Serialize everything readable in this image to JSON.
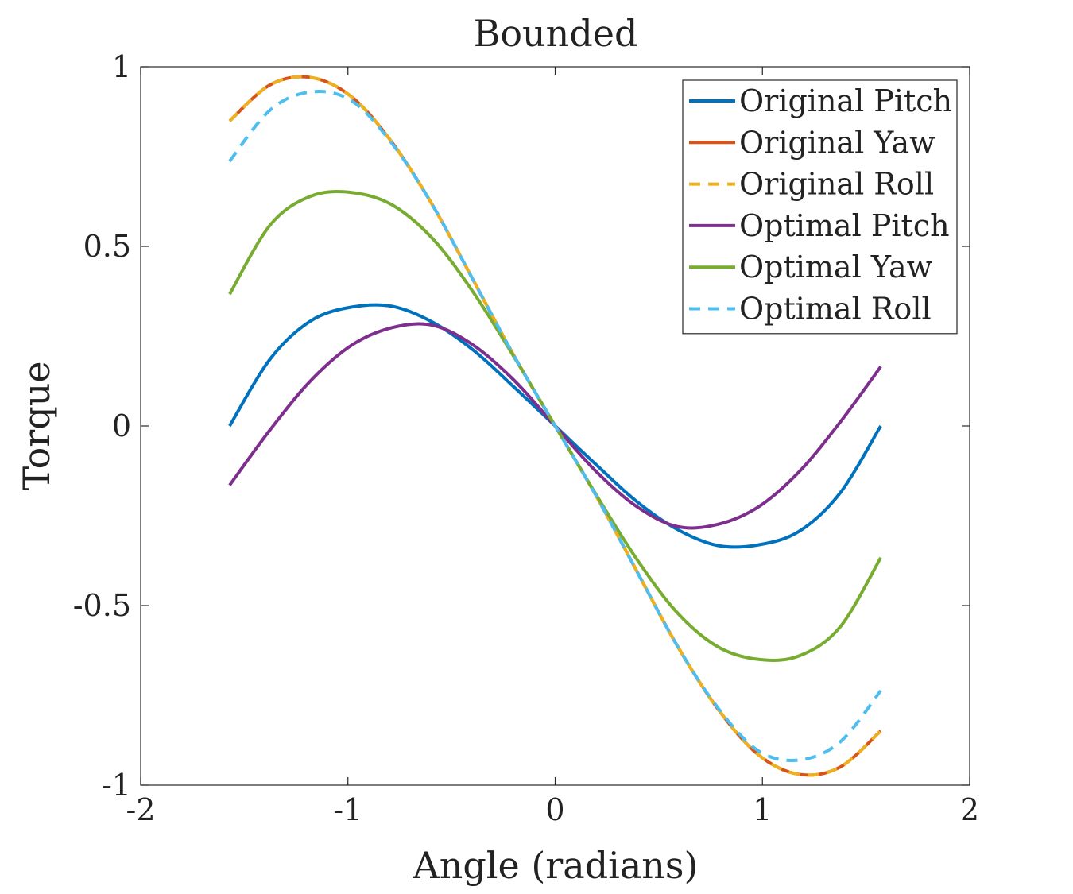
{
  "chart_data": {
    "type": "line",
    "title": "Bounded",
    "xlabel": "Angle (radians)",
    "ylabel": "Torque",
    "xlim": [
      -2,
      2
    ],
    "ylim": [
      -1,
      1
    ],
    "xticks": [
      -2,
      -1,
      0,
      1,
      2
    ],
    "xtick_labels": [
      "-2",
      "-1",
      "0",
      "1",
      "2"
    ],
    "yticks": [
      -1,
      -0.5,
      0,
      0.5,
      1
    ],
    "ytick_labels": [
      "-1",
      "-0.5",
      "0",
      "0.5",
      "1"
    ],
    "grid": false,
    "legend_position": "top-right",
    "x": [
      -1.5708,
      -1.3744,
      -1.1781,
      -0.9817,
      -0.7854,
      -0.589,
      -0.3927,
      -0.1963,
      0,
      0.1963,
      0.3927,
      0.589,
      0.7854,
      0.9817,
      1.1781,
      1.3744,
      1.5708
    ],
    "series": [
      {
        "name": "Original Pitch",
        "color": "#0072BD",
        "dash": "solid",
        "values": [
          0,
          0.187,
          0.293,
          0.331,
          0.333,
          0.288,
          0.21,
          0.107,
          0,
          -0.107,
          -0.21,
          -0.288,
          -0.333,
          -0.331,
          -0.293,
          -0.187,
          0
        ]
      },
      {
        "name": "Original Yaw",
        "color": "#D95319",
        "dash": "solid",
        "values": [
          0.849,
          0.95,
          0.97,
          0.916,
          0.788,
          0.612,
          0.403,
          0.193,
          0,
          -0.193,
          -0.403,
          -0.612,
          -0.788,
          -0.916,
          -0.97,
          -0.95,
          -0.849
        ]
      },
      {
        "name": "Original Roll",
        "color": "#EDB120",
        "dash": "dashed",
        "values": [
          0.849,
          0.95,
          0.97,
          0.916,
          0.788,
          0.612,
          0.403,
          0.193,
          0,
          -0.193,
          -0.403,
          -0.612,
          -0.788,
          -0.916,
          -0.97,
          -0.95,
          -0.849
        ]
      },
      {
        "name": "Optimal Pitch",
        "color": "#7E2F8E",
        "dash": "solid",
        "values": [
          -0.165,
          -0.01,
          0.127,
          0.225,
          0.274,
          0.28,
          0.224,
          0.126,
          0,
          -0.126,
          -0.224,
          -0.28,
          -0.274,
          -0.225,
          -0.127,
          0.01,
          0.165
        ]
      },
      {
        "name": "Optimal Yaw",
        "color": "#77AC30",
        "dash": "solid",
        "values": [
          0.367,
          0.56,
          0.64,
          0.65,
          0.615,
          0.52,
          0.37,
          0.19,
          0,
          -0.19,
          -0.37,
          -0.52,
          -0.615,
          -0.65,
          -0.64,
          -0.56,
          -0.367
        ]
      },
      {
        "name": "Optimal Roll",
        "color": "#4DBEEE",
        "dash": "dashed",
        "values": [
          0.737,
          0.88,
          0.93,
          0.905,
          0.785,
          0.612,
          0.403,
          0.193,
          0,
          -0.193,
          -0.403,
          -0.612,
          -0.785,
          -0.905,
          -0.93,
          -0.88,
          -0.737
        ]
      }
    ]
  }
}
